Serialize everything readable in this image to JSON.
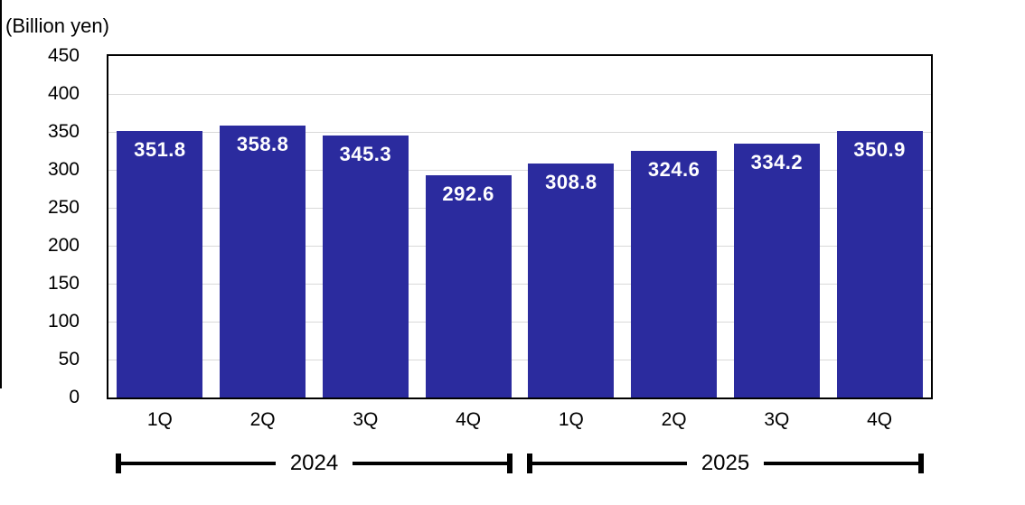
{
  "chart_data": {
    "type": "bar",
    "title": "",
    "units_label": "(Billion yen)",
    "categories": [
      "1Q",
      "2Q",
      "3Q",
      "4Q",
      "1Q",
      "2Q",
      "3Q",
      "4Q"
    ],
    "values": [
      351.8,
      358.8,
      345.3,
      292.6,
      308.8,
      324.6,
      334.2,
      350.9
    ],
    "value_labels": [
      "351.8",
      "358.8",
      "345.3",
      "292.6",
      "308.8",
      "324.6",
      "334.2",
      "350.9"
    ],
    "year_groups": [
      {
        "label": "2024",
        "start": 0,
        "end": 3
      },
      {
        "label": "2025",
        "start": 4,
        "end": 7
      }
    ],
    "ylabel": "",
    "xlabel": "",
    "ylim": [
      0,
      450
    ],
    "ytick_step": 50,
    "yticks": [
      450,
      400,
      350,
      300,
      250,
      200,
      150,
      100,
      50,
      0
    ],
    "grid": true,
    "legend": "none",
    "colors": {
      "bar_fill": "#2b2b9e",
      "bar_value_text": "#ffffff",
      "gridline": "#d9d9d9",
      "axis": "#000000",
      "text": "#000000"
    }
  }
}
